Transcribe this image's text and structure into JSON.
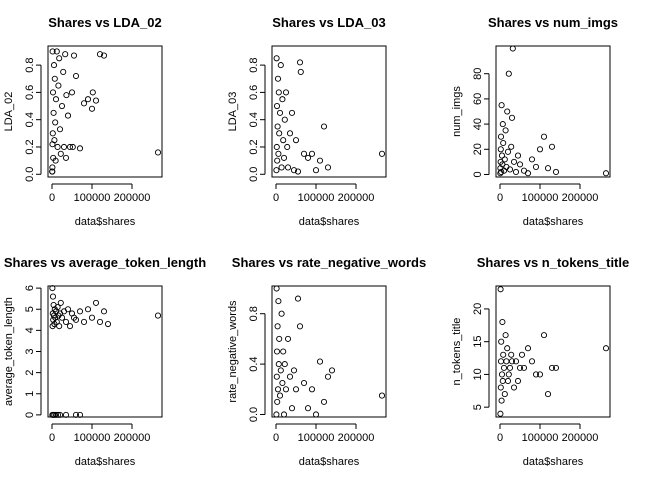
{
  "chart_data": [
    {
      "type": "scatter",
      "title": "Shares vs LDA_02",
      "xlabel": "data$shares",
      "ylabel": "LDA_02",
      "xlim": [
        -10000,
        275000
      ],
      "ylim": [
        -0.02,
        0.94
      ],
      "xticks": [
        0,
        100000,
        200000
      ],
      "xtick_labels": [
        "0",
        "100000",
        "200000"
      ],
      "yticks": [
        0.0,
        0.2,
        0.4,
        0.6,
        0.8
      ],
      "ytick_labels": [
        "0.0",
        "0.2",
        "0.4",
        "0.6",
        "0.8"
      ],
      "points": [
        [
          1000,
          0.05
        ],
        [
          1500,
          0.9
        ],
        [
          2000,
          0.3
        ],
        [
          2500,
          0.6
        ],
        [
          3000,
          0.12
        ],
        [
          4000,
          0.45
        ],
        [
          5000,
          0.8
        ],
        [
          6000,
          0.25
        ],
        [
          7000,
          0.7
        ],
        [
          8000,
          0.38
        ],
        [
          10000,
          0.55
        ],
        [
          12000,
          0.9
        ],
        [
          14000,
          0.2
        ],
        [
          16000,
          0.65
        ],
        [
          18000,
          0.85
        ],
        [
          20000,
          0.33
        ],
        [
          22000,
          0.15
        ],
        [
          25000,
          0.5
        ],
        [
          28000,
          0.75
        ],
        [
          30000,
          0.2
        ],
        [
          33000,
          0.88
        ],
        [
          36000,
          0.58
        ],
        [
          40000,
          0.43
        ],
        [
          45000,
          0.2
        ],
        [
          50000,
          0.6
        ],
        [
          52000,
          0.2
        ],
        [
          55000,
          0.87
        ],
        [
          60000,
          0.72
        ],
        [
          70000,
          0.19
        ],
        [
          80000,
          0.52
        ],
        [
          90000,
          0.55
        ],
        [
          100000,
          0.48
        ],
        [
          102000,
          0.6
        ],
        [
          110000,
          0.54
        ],
        [
          120000,
          0.88
        ],
        [
          130000,
          0.87
        ],
        [
          265000,
          0.16
        ],
        [
          500,
          0.02
        ],
        [
          700,
          0.02
        ],
        [
          35000,
          0.12
        ],
        [
          1200,
          0.22
        ],
        [
          9000,
          0.1
        ]
      ]
    },
    {
      "type": "scatter",
      "title": "Shares vs LDA_03",
      "xlabel": "data$shares",
      "ylabel": "LDA_03",
      "xlim": [
        -10000,
        275000
      ],
      "ylim": [
        -0.02,
        0.94
      ],
      "xticks": [
        0,
        100000,
        200000
      ],
      "xtick_labels": [
        "0",
        "100000",
        "200000"
      ],
      "yticks": [
        0.0,
        0.2,
        0.4,
        0.6,
        0.8
      ],
      "ytick_labels": [
        "0.0",
        "0.2",
        "0.4",
        "0.6",
        "0.8"
      ],
      "points": [
        [
          1000,
          0.03
        ],
        [
          1500,
          0.85
        ],
        [
          2000,
          0.2
        ],
        [
          2500,
          0.5
        ],
        [
          3000,
          0.1
        ],
        [
          4000,
          0.35
        ],
        [
          5000,
          0.7
        ],
        [
          6000,
          0.15
        ],
        [
          7000,
          0.6
        ],
        [
          8000,
          0.3
        ],
        [
          10000,
          0.45
        ],
        [
          12000,
          0.8
        ],
        [
          14000,
          0.05
        ],
        [
          16000,
          0.55
        ],
        [
          18000,
          0.25
        ],
        [
          20000,
          0.12
        ],
        [
          22000,
          0.4
        ],
        [
          25000,
          0.6
        ],
        [
          28000,
          0.2
        ],
        [
          30000,
          0.05
        ],
        [
          35000,
          0.3
        ],
        [
          40000,
          0.45
        ],
        [
          45000,
          0.03
        ],
        [
          50000,
          0.25
        ],
        [
          55000,
          0.02
        ],
        [
          60000,
          0.82
        ],
        [
          62000,
          0.75
        ],
        [
          70000,
          0.15
        ],
        [
          80000,
          0.12
        ],
        [
          90000,
          0.15
        ],
        [
          100000,
          0.03
        ],
        [
          110000,
          0.1
        ],
        [
          120000,
          0.35
        ],
        [
          130000,
          0.05
        ],
        [
          265000,
          0.15
        ]
      ]
    },
    {
      "type": "scatter",
      "title": "Shares vs num_imgs",
      "xlabel": "data$shares",
      "ylabel": "num_imgs",
      "xlim": [
        -10000,
        275000
      ],
      "ylim": [
        -2,
        102
      ],
      "xticks": [
        0,
        100000,
        200000
      ],
      "xtick_labels": [
        "0",
        "100000",
        "200000"
      ],
      "yticks": [
        0,
        20,
        40,
        60,
        80
      ],
      "ytick_labels": [
        "0",
        "20",
        "40",
        "60",
        "80"
      ],
      "points": [
        [
          800,
          1
        ],
        [
          1000,
          5
        ],
        [
          1500,
          10
        ],
        [
          2000,
          20
        ],
        [
          2500,
          30
        ],
        [
          3000,
          2
        ],
        [
          4000,
          55
        ],
        [
          5000,
          15
        ],
        [
          6000,
          8
        ],
        [
          7000,
          40
        ],
        [
          8000,
          25
        ],
        [
          10000,
          3
        ],
        [
          12000,
          12
        ],
        [
          14000,
          35
        ],
        [
          16000,
          6
        ],
        [
          18000,
          50
        ],
        [
          20000,
          18
        ],
        [
          22000,
          80
        ],
        [
          25000,
          4
        ],
        [
          28000,
          22
        ],
        [
          30000,
          45
        ],
        [
          32000,
          100
        ],
        [
          35000,
          10
        ],
        [
          40000,
          2
        ],
        [
          45000,
          15
        ],
        [
          50000,
          8
        ],
        [
          60000,
          3
        ],
        [
          70000,
          1
        ],
        [
          80000,
          12
        ],
        [
          90000,
          6
        ],
        [
          100000,
          20
        ],
        [
          110000,
          30
        ],
        [
          120000,
          5
        ],
        [
          130000,
          22
        ],
        [
          140000,
          2
        ],
        [
          265000,
          1
        ]
      ]
    },
    {
      "type": "scatter",
      "title": "Shares vs average_token_length",
      "xlabel": "data$shares",
      "ylabel": "average_token_length",
      "xlim": [
        -10000,
        275000
      ],
      "ylim": [
        -0.1,
        6.1
      ],
      "xticks": [
        0,
        100000,
        200000
      ],
      "xtick_labels": [
        "0",
        "100000",
        "200000"
      ],
      "yticks": [
        0,
        1,
        2,
        3,
        4,
        5,
        6
      ],
      "ytick_labels": [
        "0",
        "1",
        "2",
        "3",
        "4",
        "5",
        "6"
      ],
      "points": [
        [
          1000,
          6.0
        ],
        [
          1500,
          4.2
        ],
        [
          2000,
          4.8
        ],
        [
          2500,
          5.6
        ],
        [
          3000,
          4.5
        ],
        [
          4000,
          5.2
        ],
        [
          5000,
          4.7
        ],
        [
          6000,
          4.3
        ],
        [
          7000,
          5.0
        ],
        [
          8000,
          4.6
        ],
        [
          10000,
          4.9
        ],
        [
          12000,
          4.4
        ],
        [
          14000,
          5.1
        ],
        [
          16000,
          4.7
        ],
        [
          18000,
          4.2
        ],
        [
          20000,
          4.8
        ],
        [
          22000,
          5.3
        ],
        [
          25000,
          4.6
        ],
        [
          30000,
          4.9
        ],
        [
          35000,
          4.4
        ],
        [
          40000,
          5.0
        ],
        [
          45000,
          4.2
        ],
        [
          50000,
          4.8
        ],
        [
          55000,
          4.6
        ],
        [
          60000,
          4.5
        ],
        [
          70000,
          4.9
        ],
        [
          80000,
          4.4
        ],
        [
          90000,
          5.0
        ],
        [
          100000,
          4.6
        ],
        [
          110000,
          5.3
        ],
        [
          120000,
          4.4
        ],
        [
          130000,
          4.9
        ],
        [
          140000,
          4.3
        ],
        [
          265000,
          4.7
        ],
        [
          1000,
          0.0
        ],
        [
          3000,
          0.0
        ],
        [
          6000,
          0.0
        ],
        [
          10000,
          0.0
        ],
        [
          15000,
          0.0
        ],
        [
          20000,
          0.0
        ],
        [
          35000,
          0.0
        ],
        [
          60000,
          0.0
        ],
        [
          70000,
          0.0
        ]
      ]
    },
    {
      "type": "scatter",
      "title": "Shares vs rate_negative_words",
      "xlabel": "data$shares",
      "ylabel": "rate_negative_words",
      "xlim": [
        -10000,
        275000
      ],
      "ylim": [
        -0.02,
        1.02
      ],
      "xticks": [
        0,
        100000,
        200000
      ],
      "xtick_labels": [
        "0",
        "100000",
        "200000"
      ],
      "yticks": [
        0.0,
        0.4,
        0.8
      ],
      "ytick_labels": [
        "0.0",
        "0.4",
        "0.8"
      ],
      "points": [
        [
          1000,
          0.0
        ],
        [
          1500,
          1.0
        ],
        [
          2000,
          0.3
        ],
        [
          2500,
          0.5
        ],
        [
          3000,
          0.1
        ],
        [
          4000,
          0.7
        ],
        [
          5000,
          0.2
        ],
        [
          6000,
          0.9
        ],
        [
          7000,
          0.4
        ],
        [
          8000,
          0.6
        ],
        [
          10000,
          0.15
        ],
        [
          12000,
          0.35
        ],
        [
          14000,
          0.8
        ],
        [
          16000,
          0.25
        ],
        [
          18000,
          0.5
        ],
        [
          20000,
          0.0
        ],
        [
          22000,
          0.4
        ],
        [
          25000,
          0.2
        ],
        [
          30000,
          0.6
        ],
        [
          35000,
          0.3
        ],
        [
          40000,
          0.05
        ],
        [
          45000,
          0.35
        ],
        [
          50000,
          0.2
        ],
        [
          55000,
          0.92
        ],
        [
          60000,
          0.7
        ],
        [
          70000,
          0.25
        ],
        [
          80000,
          0.05
        ],
        [
          90000,
          0.2
        ],
        [
          100000,
          0.0
        ],
        [
          110000,
          0.42
        ],
        [
          120000,
          0.1
        ],
        [
          130000,
          0.3
        ],
        [
          140000,
          0.35
        ],
        [
          265000,
          0.15
        ]
      ]
    },
    {
      "type": "scatter",
      "title": "Shares vs n_tokens_title",
      "xlabel": "data$shares",
      "ylabel": "n_tokens_title",
      "xlim": [
        -10000,
        275000
      ],
      "ylim": [
        3.5,
        23.5
      ],
      "xticks": [
        0,
        100000,
        200000
      ],
      "xtick_labels": [
        "0",
        "100000",
        "200000"
      ],
      "yticks": [
        5,
        10,
        15,
        20
      ],
      "ytick_labels": [
        "5",
        "10",
        "15",
        "20"
      ],
      "points": [
        [
          1000,
          4
        ],
        [
          1500,
          23
        ],
        [
          2000,
          8
        ],
        [
          2500,
          12
        ],
        [
          3000,
          15
        ],
        [
          4000,
          6
        ],
        [
          5000,
          10
        ],
        [
          6000,
          18
        ],
        [
          7000,
          9
        ],
        [
          8000,
          13
        ],
        [
          10000,
          11
        ],
        [
          12000,
          7
        ],
        [
          14000,
          16
        ],
        [
          16000,
          12
        ],
        [
          18000,
          14
        ],
        [
          20000,
          9
        ],
        [
          22000,
          10
        ],
        [
          25000,
          11
        ],
        [
          28000,
          13
        ],
        [
          30000,
          12
        ],
        [
          35000,
          8
        ],
        [
          40000,
          12
        ],
        [
          45000,
          9
        ],
        [
          50000,
          11
        ],
        [
          55000,
          13
        ],
        [
          60000,
          11
        ],
        [
          70000,
          14
        ],
        [
          80000,
          12
        ],
        [
          90000,
          10
        ],
        [
          100000,
          10
        ],
        [
          110000,
          16
        ],
        [
          120000,
          7
        ],
        [
          130000,
          11
        ],
        [
          140000,
          11
        ],
        [
          265000,
          14
        ]
      ]
    }
  ]
}
